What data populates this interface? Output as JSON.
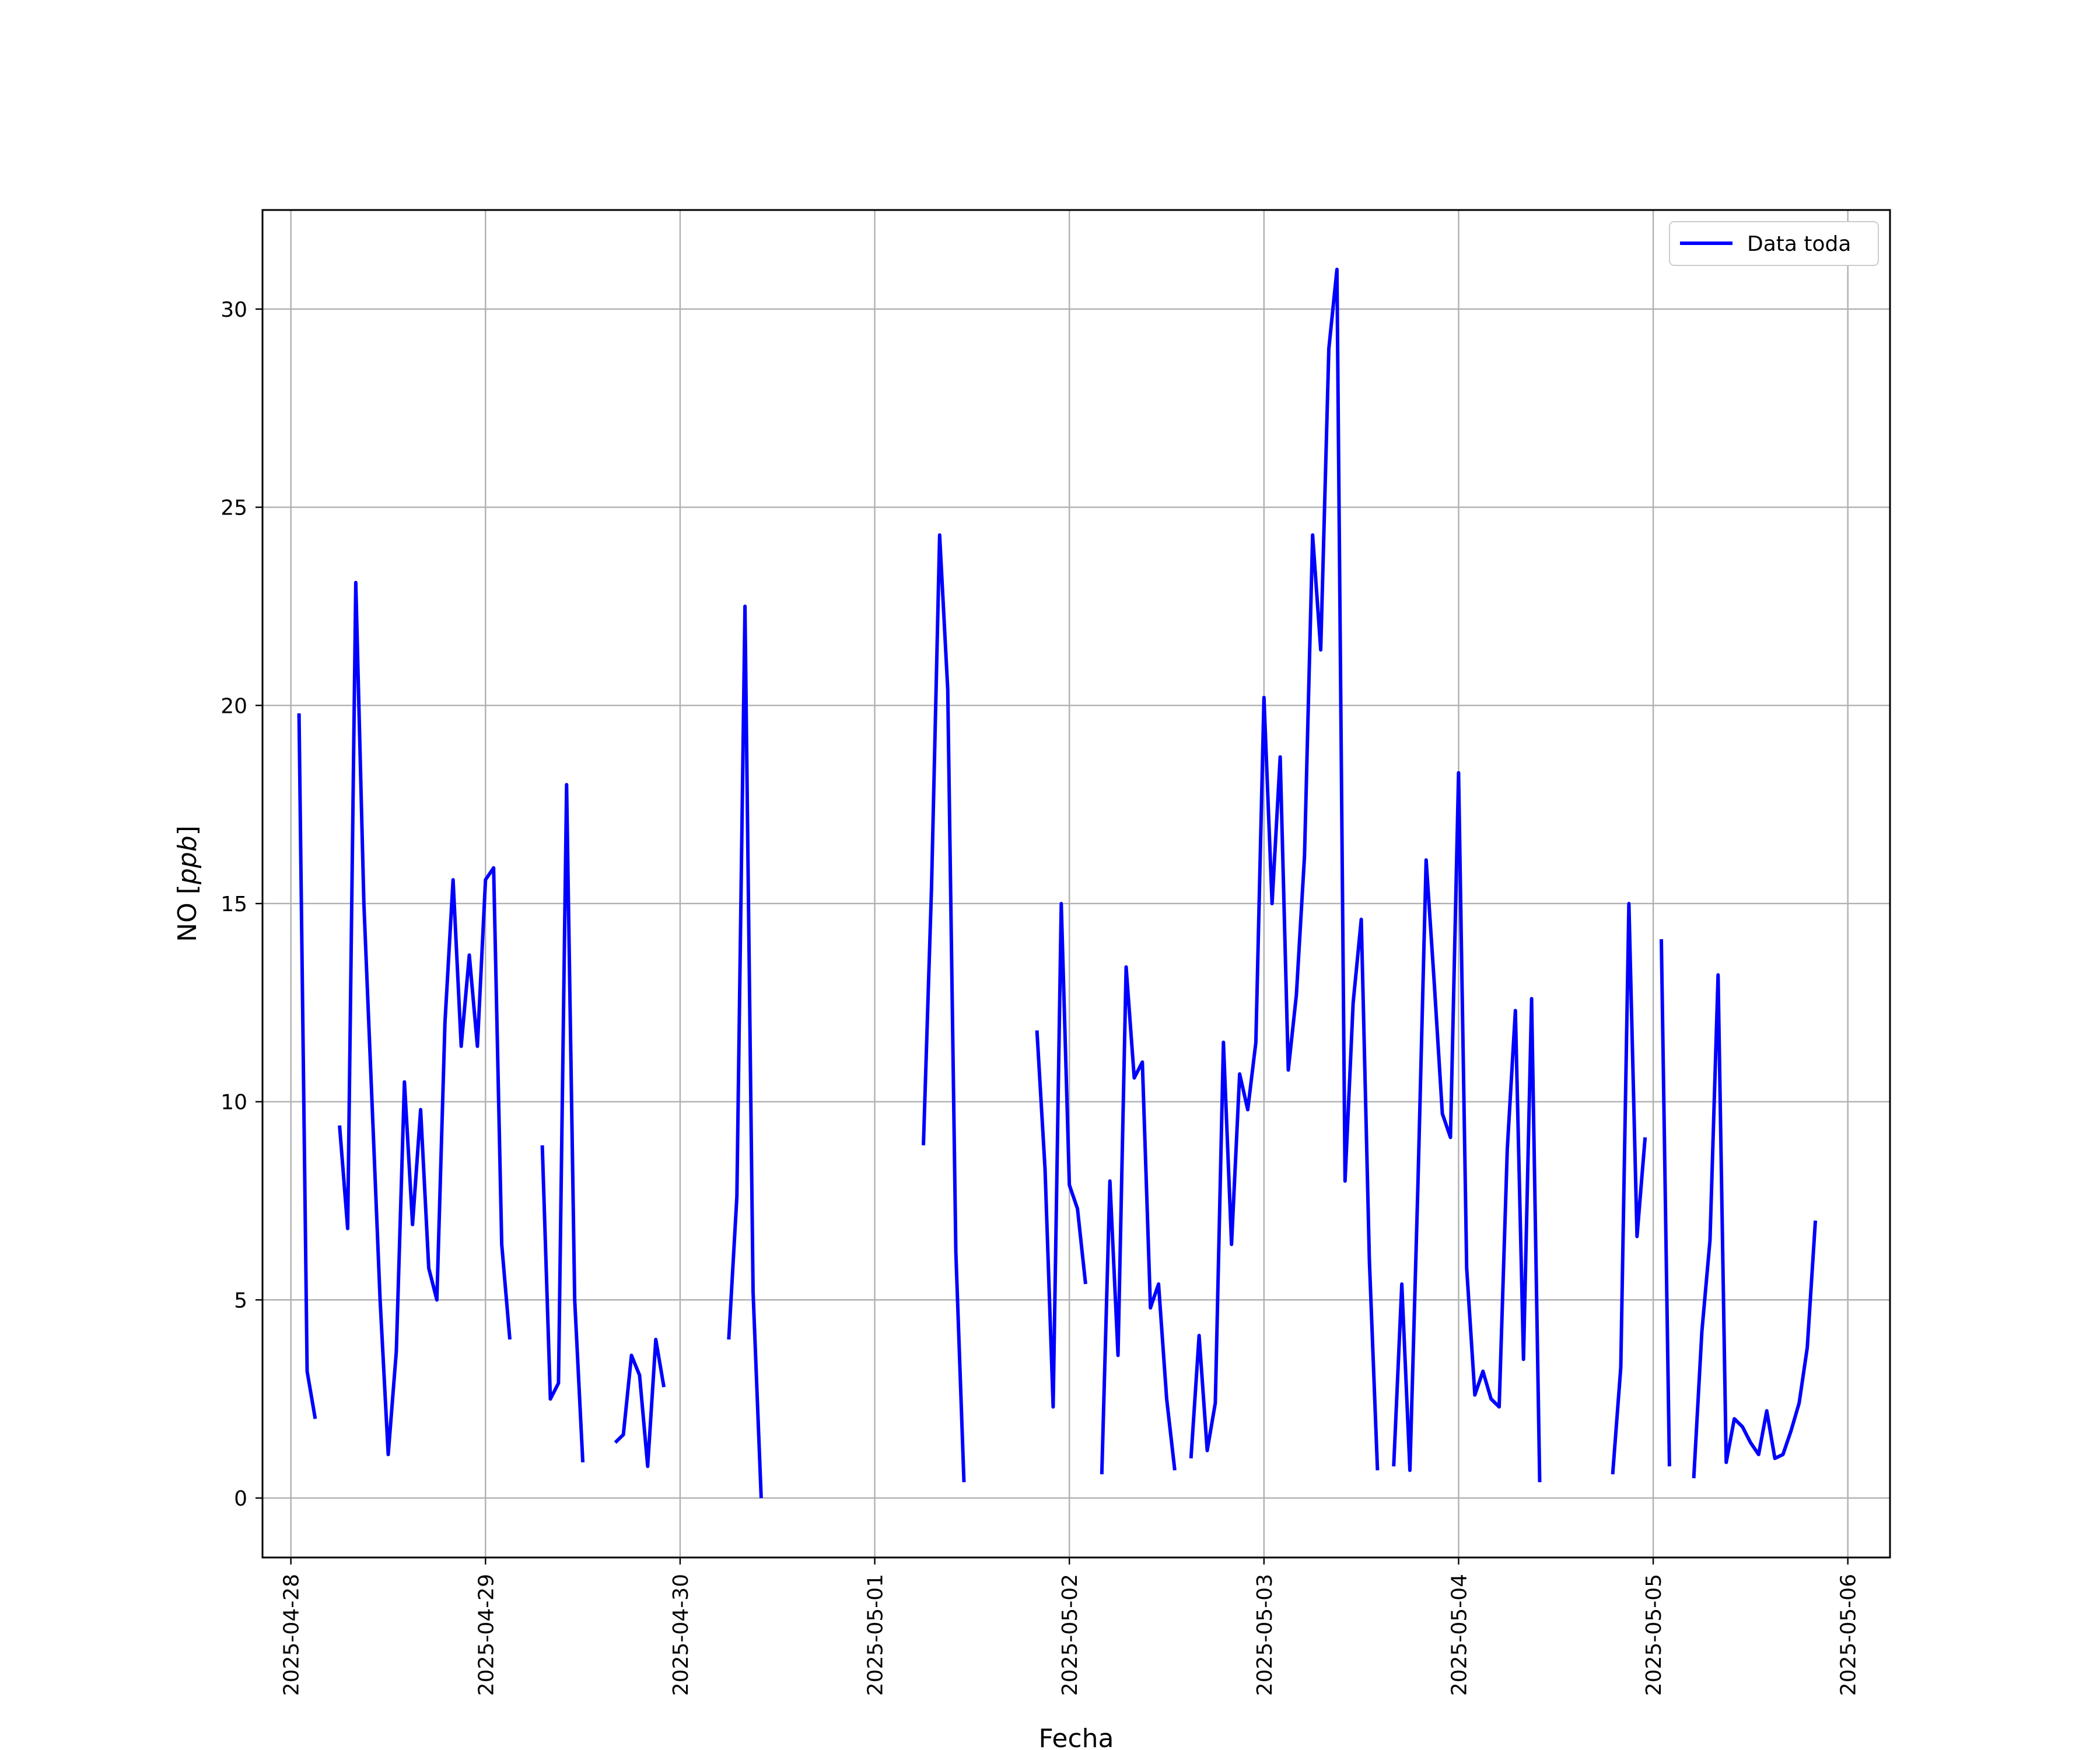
{
  "chart_data": {
    "type": "line",
    "xlabel": "Fecha",
    "ylabel_main": "NO [",
    "ylabel_unit": "ppb",
    "ylabel_close": "]",
    "xlim": [
      "2025-04-27 20:30",
      "2025-05-06 05:12"
    ],
    "ylim": [
      -1.5,
      32.5
    ],
    "x_ticks": [
      "2025-04-28",
      "2025-04-29",
      "2025-04-30",
      "2025-05-01",
      "2025-05-02",
      "2025-05-03",
      "2025-05-04",
      "2025-05-05",
      "2025-05-06"
    ],
    "y_ticks": [
      0,
      5,
      10,
      15,
      20,
      25,
      30
    ],
    "grid": true,
    "legend_position": "top-right",
    "color": "#0000ff",
    "series": [
      {
        "name": "Data toda",
        "segments": [
          [
            [
              "2025-04-28 01:00",
              19.8
            ],
            [
              "2025-04-28 02:00",
              3.2
            ],
            [
              "2025-04-28 03:00",
              2.0
            ]
          ],
          [
            [
              "2025-04-28 06:00",
              9.4
            ],
            [
              "2025-04-28 07:00",
              6.8
            ],
            [
              "2025-04-28 08:00",
              23.1
            ],
            [
              "2025-04-28 09:00",
              15.0
            ],
            [
              "2025-04-28 11:00",
              5.0
            ],
            [
              "2025-04-28 12:00",
              1.1
            ],
            [
              "2025-04-28 13:00",
              3.7
            ],
            [
              "2025-04-28 14:00",
              10.5
            ],
            [
              "2025-04-28 15:00",
              6.9
            ],
            [
              "2025-04-28 16:00",
              9.8
            ],
            [
              "2025-04-28 17:00",
              5.8
            ],
            [
              "2025-04-28 18:00",
              5.0
            ],
            [
              "2025-04-28 19:00",
              12.0
            ],
            [
              "2025-04-28 20:00",
              15.6
            ],
            [
              "2025-04-28 21:00",
              11.4
            ],
            [
              "2025-04-28 22:00",
              13.7
            ],
            [
              "2025-04-28 23:00",
              11.4
            ],
            [
              "2025-04-29 00:00",
              15.6
            ],
            [
              "2025-04-29 01:00",
              15.9
            ],
            [
              "2025-04-29 02:00",
              6.4
            ],
            [
              "2025-04-29 03:00",
              4.0
            ]
          ],
          [
            [
              "2025-04-29 07:00",
              8.9
            ],
            [
              "2025-04-29 08:00",
              2.5
            ],
            [
              "2025-04-29 09:00",
              2.9
            ],
            [
              "2025-04-29 10:00",
              18.0
            ],
            [
              "2025-04-29 11:00",
              5.0
            ],
            [
              "2025-04-29 12:00",
              0.9
            ]
          ],
          [
            [
              "2025-04-29 16:00",
              1.4
            ],
            [
              "2025-04-29 17:00",
              1.6
            ],
            [
              "2025-04-29 18:00",
              3.6
            ],
            [
              "2025-04-29 19:00",
              3.1
            ],
            [
              "2025-04-29 20:00",
              0.8
            ],
            [
              "2025-04-29 21:00",
              4.0
            ],
            [
              "2025-04-29 22:00",
              2.8
            ]
          ],
          [
            [
              "2025-04-30 06:00",
              4.0
            ],
            [
              "2025-04-30 07:00",
              7.6
            ],
            [
              "2025-04-30 08:00",
              22.5
            ],
            [
              "2025-04-30 09:00",
              5.2
            ],
            [
              "2025-04-30 10:00",
              0.0
            ]
          ],
          [
            [
              "2025-05-01 06:00",
              8.9
            ],
            [
              "2025-05-01 07:00",
              15.4
            ],
            [
              "2025-05-01 08:00",
              24.3
            ],
            [
              "2025-05-01 09:00",
              20.4
            ],
            [
              "2025-05-01 10:00",
              6.2
            ],
            [
              "2025-05-01 11:00",
              0.4
            ]
          ],
          [
            [
              "2025-05-01 20:00",
              11.8
            ],
            [
              "2025-05-01 21:00",
              8.3
            ],
            [
              "2025-05-01 22:00",
              2.3
            ],
            [
              "2025-05-01 23:00",
              15.0
            ],
            [
              "2025-05-02 00:00",
              7.9
            ],
            [
              "2025-05-02 01:00",
              7.3
            ],
            [
              "2025-05-02 02:00",
              5.4
            ]
          ],
          [
            [
              "2025-05-02 04:00",
              0.6
            ],
            [
              "2025-05-02 05:00",
              8.0
            ],
            [
              "2025-05-02 06:00",
              3.6
            ],
            [
              "2025-05-02 07:00",
              13.4
            ],
            [
              "2025-05-02 08:00",
              10.6
            ],
            [
              "2025-05-02 09:00",
              11.0
            ],
            [
              "2025-05-02 10:00",
              4.8
            ],
            [
              "2025-05-02 11:00",
              5.4
            ],
            [
              "2025-05-02 12:00",
              2.5
            ],
            [
              "2025-05-02 13:00",
              0.7
            ]
          ],
          [
            [
              "2025-05-02 15:00",
              1.0
            ],
            [
              "2025-05-02 16:00",
              4.1
            ],
            [
              "2025-05-02 17:00",
              1.2
            ],
            [
              "2025-05-02 18:00",
              2.4
            ],
            [
              "2025-05-02 19:00",
              11.5
            ],
            [
              "2025-05-02 20:00",
              6.4
            ],
            [
              "2025-05-02 21:00",
              10.7
            ],
            [
              "2025-05-02 22:00",
              9.8
            ],
            [
              "2025-05-02 23:00",
              11.5
            ],
            [
              "2025-05-03 00:00",
              20.2
            ],
            [
              "2025-05-03 01:00",
              15.0
            ],
            [
              "2025-05-03 02:00",
              18.7
            ],
            [
              "2025-05-03 03:00",
              10.8
            ],
            [
              "2025-05-03 04:00",
              12.7
            ],
            [
              "2025-05-03 05:00",
              16.2
            ],
            [
              "2025-05-03 06:00",
              24.3
            ],
            [
              "2025-05-03 07:00",
              21.4
            ],
            [
              "2025-05-03 08:00",
              29.0
            ],
            [
              "2025-05-03 09:00",
              31.0
            ],
            [
              "2025-05-03 10:00",
              8.0
            ],
            [
              "2025-05-03 11:00",
              12.5
            ],
            [
              "2025-05-03 12:00",
              14.6
            ],
            [
              "2025-05-03 13:00",
              6.0
            ],
            [
              "2025-05-03 14:00",
              0.7
            ]
          ],
          [
            [
              "2025-05-03 16:00",
              0.8
            ],
            [
              "2025-05-03 17:00",
              5.4
            ],
            [
              "2025-05-03 18:00",
              0.7
            ],
            [
              "2025-05-03 19:00",
              8.0
            ],
            [
              "2025-05-03 20:00",
              16.1
            ],
            [
              "2025-05-03 21:00",
              13.0
            ],
            [
              "2025-05-03 22:00",
              9.7
            ],
            [
              "2025-05-03 23:00",
              9.1
            ],
            [
              "2025-05-04 00:00",
              18.3
            ],
            [
              "2025-05-04 01:00",
              5.8
            ],
            [
              "2025-05-04 02:00",
              2.6
            ],
            [
              "2025-05-04 03:00",
              3.2
            ],
            [
              "2025-05-04 04:00",
              2.5
            ],
            [
              "2025-05-04 05:00",
              2.3
            ],
            [
              "2025-05-04 06:00",
              8.8
            ],
            [
              "2025-05-04 07:00",
              12.3
            ],
            [
              "2025-05-04 08:00",
              3.5
            ],
            [
              "2025-05-04 09:00",
              12.6
            ],
            [
              "2025-05-04 10:00",
              0.4
            ]
          ],
          [
            [
              "2025-05-04 19:00",
              0.6
            ],
            [
              "2025-05-04 20:00",
              3.3
            ],
            [
              "2025-05-04 21:00",
              15.0
            ],
            [
              "2025-05-04 22:00",
              6.6
            ],
            [
              "2025-05-04 23:00",
              9.1
            ]
          ],
          [
            [
              "2025-05-05 01:00",
              14.1
            ],
            [
              "2025-05-05 02:00",
              0.8
            ]
          ],
          [
            [
              "2025-05-05 05:00",
              0.5
            ],
            [
              "2025-05-05 06:00",
              4.2
            ],
            [
              "2025-05-05 07:00",
              6.5
            ],
            [
              "2025-05-05 08:00",
              13.2
            ],
            [
              "2025-05-05 09:00",
              0.9
            ],
            [
              "2025-05-05 10:00",
              2.0
            ],
            [
              "2025-05-05 11:00",
              1.8
            ],
            [
              "2025-05-05 12:00",
              1.4
            ],
            [
              "2025-05-05 13:00",
              1.1
            ],
            [
              "2025-05-05 14:00",
              2.2
            ],
            [
              "2025-05-05 15:00",
              1.0
            ],
            [
              "2025-05-05 16:00",
              1.1
            ],
            [
              "2025-05-05 17:00",
              1.7
            ],
            [
              "2025-05-05 18:00",
              2.4
            ],
            [
              "2025-05-05 19:00",
              3.8
            ],
            [
              "2025-05-05 20:00",
              7.0
            ]
          ]
        ]
      }
    ]
  }
}
